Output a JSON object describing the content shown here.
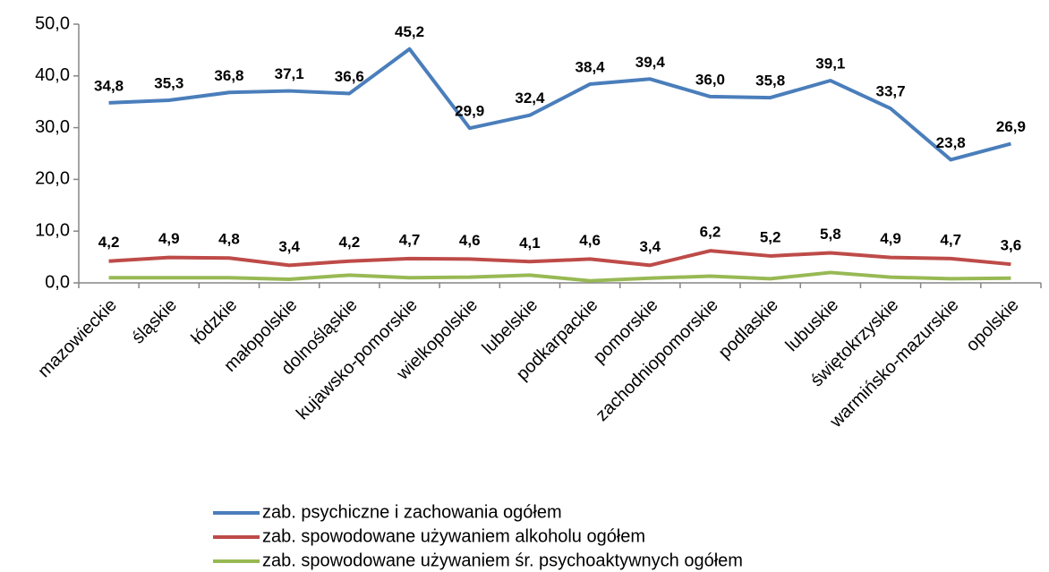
{
  "chart_data": {
    "type": "line",
    "categories": [
      "mazowieckie",
      "śląskie",
      "łódzkie",
      "małopolskie",
      "dolnośląskie",
      "kujawsko-pomorskie",
      "wielkopolskie",
      "lubelskie",
      "podkarpackie",
      "pomorskie",
      "zachodniopomorskie",
      "podlaskie",
      "lubuskie",
      "świętokrzyskie",
      "warmińsko-mazurskie",
      "opolskie"
    ],
    "series": [
      {
        "name": "zab. psychiczne i zachowania ogółem",
        "color": "#4a7ebb",
        "values": [
          34.8,
          35.3,
          36.8,
          37.1,
          36.6,
          45.2,
          29.9,
          32.4,
          38.4,
          39.4,
          36.0,
          35.8,
          39.1,
          33.7,
          23.8,
          26.9
        ],
        "value_labels": [
          "34,8",
          "35,3",
          "36,8",
          "37,1",
          "36,6",
          "45,2",
          "29,9",
          "32,4",
          "38,4",
          "39,4",
          "36,0",
          "35,8",
          "39,1",
          "33,7",
          "23,8",
          "26,9"
        ]
      },
      {
        "name": "zab. spowodowane używaniem alkoholu ogółem",
        "color": "#be4b48",
        "values": [
          4.2,
          4.9,
          4.8,
          3.4,
          4.2,
          4.7,
          4.6,
          4.1,
          4.6,
          3.4,
          6.2,
          5.2,
          5.8,
          4.9,
          4.7,
          3.6
        ],
        "value_labels": [
          "4,2",
          "4,9",
          "4,8",
          "3,4",
          "4,2",
          "4,7",
          "4,6",
          "4,1",
          "4,6",
          "3,4",
          "6,2",
          "5,2",
          "5,8",
          "4,9",
          "4,7",
          "3,6"
        ]
      },
      {
        "name": "zab. spowodowane używaniem śr. psychoaktywnych ogółem",
        "color": "#98b954",
        "values": [
          1.0,
          1.0,
          1.0,
          0.7,
          1.5,
          1.0,
          1.1,
          1.5,
          0.4,
          0.9,
          1.3,
          0.8,
          2.0,
          1.1,
          0.8,
          0.9
        ]
      }
    ],
    "ylim": [
      0,
      50
    ],
    "yticks": [
      {
        "value": 0,
        "label": "0,0"
      },
      {
        "value": 10,
        "label": "10,0"
      },
      {
        "value": 20,
        "label": "20,0"
      },
      {
        "value": 30,
        "label": "30,0"
      },
      {
        "value": 40,
        "label": "40,0"
      },
      {
        "value": 50,
        "label": "50,0"
      }
    ],
    "grid": false,
    "legend": "bottom"
  }
}
